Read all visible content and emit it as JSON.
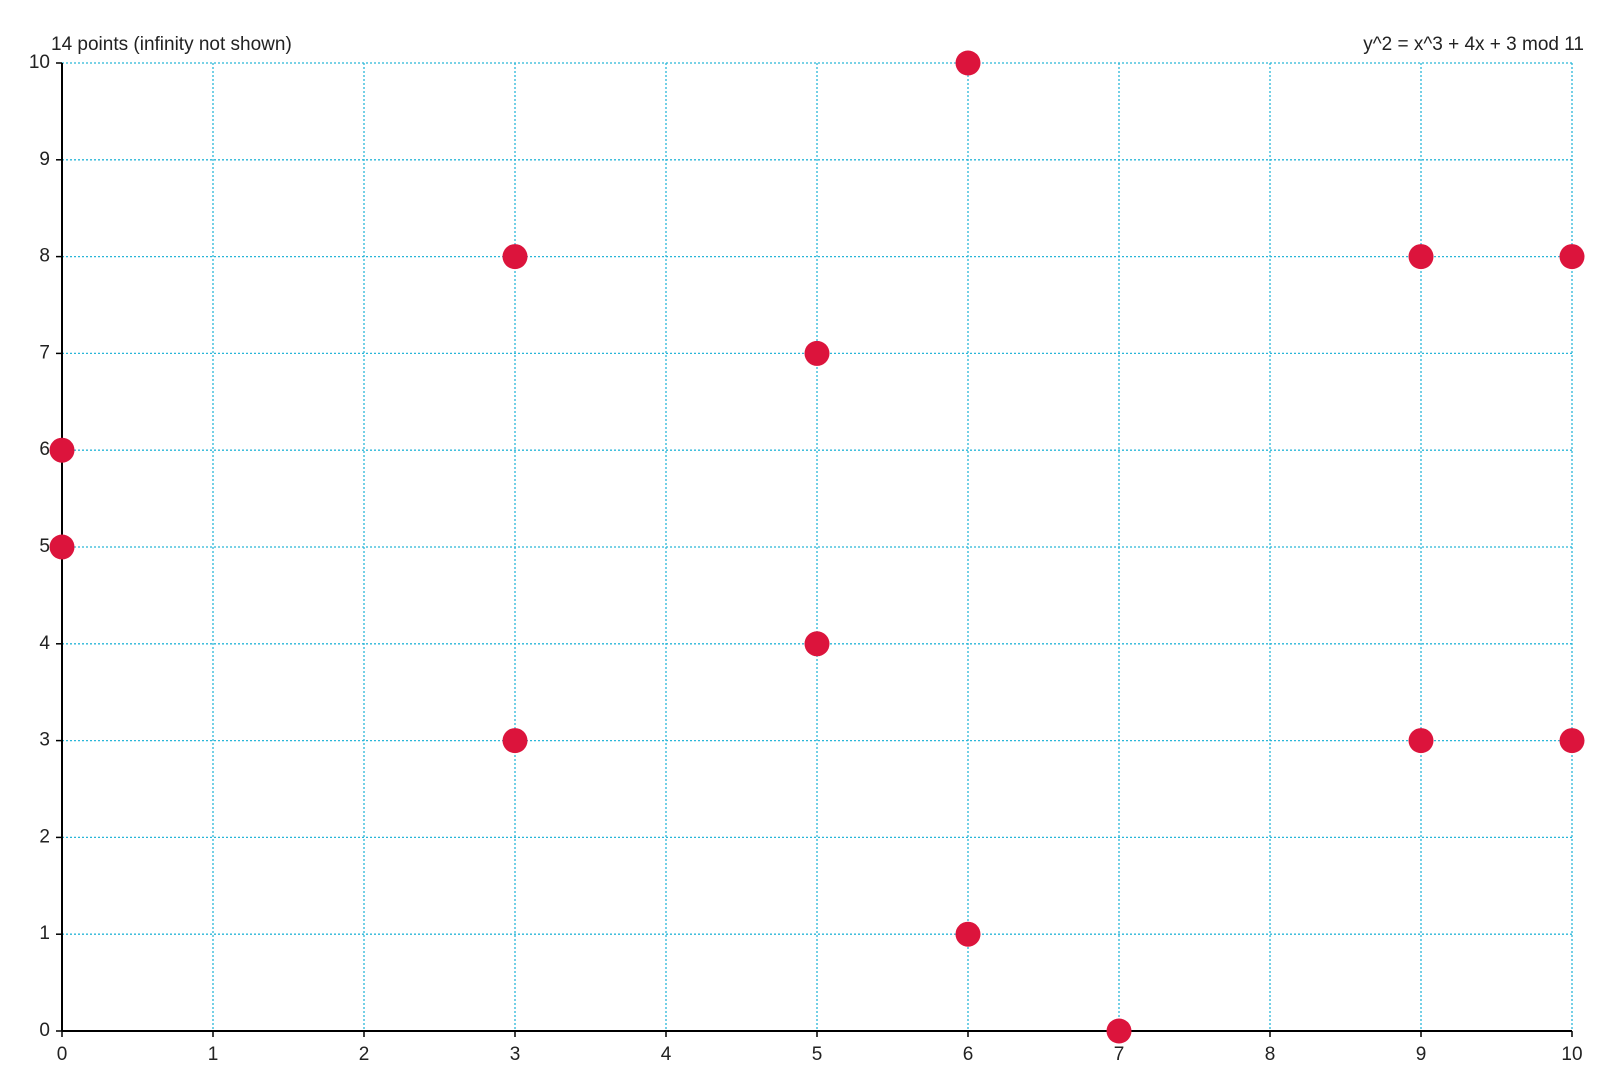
{
  "chart_data": {
    "type": "scatter",
    "title": "y^2 = x^3 + 4x + 3 mod 11",
    "subtitle": "14 points (infinity not shown)",
    "x": [
      0,
      0,
      3,
      3,
      5,
      5,
      6,
      6,
      7,
      9,
      9,
      10,
      10
    ],
    "values": [
      5,
      6,
      3,
      8,
      4,
      7,
      1,
      10,
      0,
      3,
      8,
      3,
      8
    ],
    "color": "#dc143c",
    "grid_color": "#29b6d8",
    "xlim": [
      0,
      10
    ],
    "xticks": [
      0,
      1,
      2,
      3,
      4,
      5,
      6,
      7,
      8,
      9,
      10
    ],
    "ylim": [
      0,
      10
    ],
    "yticks": [
      0,
      1,
      2,
      3,
      4,
      5,
      6,
      7,
      8,
      9,
      10
    ],
    "grid": true
  }
}
